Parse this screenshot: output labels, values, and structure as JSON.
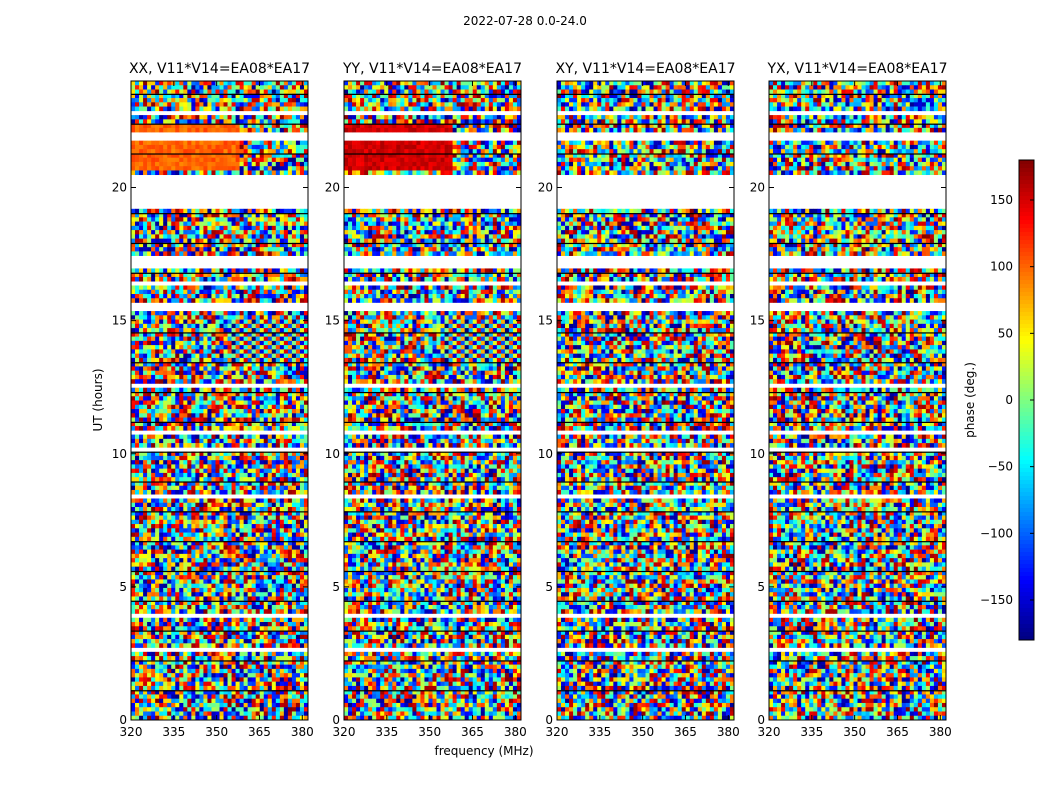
{
  "figure_title": "2022-07-28 0.0-24.0",
  "chart_data": {
    "type": "heatmap",
    "suptitle": "2022-07-28 0.0-24.0",
    "xlabel": "frequency (MHz)",
    "ylabel": "UT (hours)",
    "xlim": [
      320,
      382
    ],
    "ylim": [
      0,
      24
    ],
    "xticks": [
      320,
      335,
      350,
      365,
      380
    ],
    "yticks": [
      0,
      5,
      10,
      15,
      20
    ],
    "panels": [
      {
        "title": "XX, V11*V14=EA08*EA17",
        "pattern": "fringe-warm"
      },
      {
        "title": "YY, V11*V14=EA08*EA17",
        "pattern": "fringe-hot"
      },
      {
        "title": "XY, V11*V14=EA08*EA17",
        "pattern": "noise"
      },
      {
        "title": "YX, V11*V14=EA08*EA17",
        "pattern": "noise"
      }
    ],
    "colorbar": {
      "label": "phase (deg.)",
      "range": [
        -180,
        180
      ],
      "ticks": [
        150,
        100,
        50,
        0,
        -50,
        -100,
        -150
      ],
      "ticklabels": [
        "150",
        "100",
        "50",
        "0",
        "−50",
        "−100",
        "−150"
      ],
      "colormap": "jet"
    },
    "gaps_hours": [
      [
        0.25,
        0.3
      ],
      [
        1.05,
        1.15
      ],
      [
        2.55,
        2.65
      ],
      [
        3.85,
        4.05
      ],
      [
        5.55,
        5.65
      ],
      [
        8.35,
        8.45
      ],
      [
        10.05,
        10.2
      ],
      [
        10.75,
        10.85
      ],
      [
        12.5,
        12.6
      ],
      [
        15.3,
        15.7
      ],
      [
        16.3,
        16.5
      ],
      [
        17.0,
        17.5
      ],
      [
        19.2,
        20.5
      ],
      [
        21.8,
        22.0
      ],
      [
        22.75,
        22.9
      ]
    ]
  }
}
